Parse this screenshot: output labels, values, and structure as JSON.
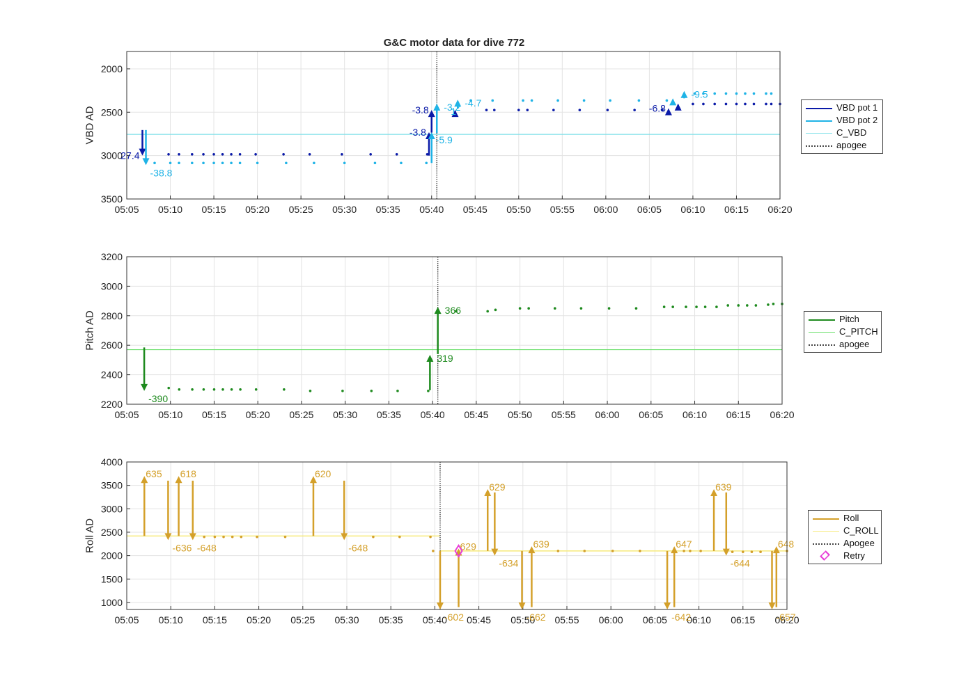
{
  "title": "G&C motor data for dive 772",
  "x_ticks": [
    "05:05",
    "05:10",
    "05:15",
    "05:20",
    "05:25",
    "05:30",
    "05:35",
    "05:40",
    "05:45",
    "05:50",
    "05:55",
    "06:00",
    "06:05",
    "06:10",
    "06:15",
    "06:20"
  ],
  "chart_data": [
    {
      "type": "line",
      "ylabel": "VBD AD",
      "xlim": [
        "05:05",
        "06:20"
      ],
      "ylim": [
        3500,
        1800
      ],
      "y_reversed": true,
      "yticks": [
        2000,
        2500,
        3000,
        3500
      ],
      "grid": true,
      "legend_position": "right",
      "legend": [
        "VBD pot 1",
        "VBD pot 2",
        "C_VBD",
        "apogee"
      ],
      "colors": {
        "pot1": "#0a1aa8",
        "pot2": "#1fb3e6",
        "c_line": "#7fe0e8",
        "apogee": "#444444"
      },
      "c_value": 2755,
      "apogee_time": "05:40.6",
      "series": [
        {
          "name": "VBD pot 1",
          "points": [
            [
              "05:09.8",
              2985
            ],
            [
              "05:11",
              2985
            ],
            [
              "05:12.5",
              2985
            ],
            [
              "05:13.8",
              2985
            ],
            [
              "05:15",
              2985
            ],
            [
              "05:16",
              2985
            ],
            [
              "05:17",
              2985
            ],
            [
              "05:18",
              2985
            ],
            [
              "05:19.8",
              2985
            ],
            [
              "05:23",
              2985
            ],
            [
              "05:26",
              2985
            ],
            [
              "05:29.7",
              2985
            ],
            [
              "05:33",
              2985
            ],
            [
              "05:36",
              2985
            ],
            [
              "05:39.5",
              2985
            ],
            [
              "05:46.3",
              2475
            ],
            [
              "05:47.2",
              2475
            ],
            [
              "05:50",
              2475
            ],
            [
              "05:51",
              2475
            ],
            [
              "05:54",
              2475
            ],
            [
              "05:57",
              2475
            ],
            [
              "06:00.2",
              2475
            ],
            [
              "06:03.3",
              2475
            ],
            [
              "06:06.5",
              2475
            ],
            [
              "06:10",
              2405
            ],
            [
              "06:11.2",
              2405
            ],
            [
              "06:12.5",
              2405
            ],
            [
              "06:13.8",
              2405
            ],
            [
              "06:15",
              2405
            ],
            [
              "06:16",
              2405
            ],
            [
              "06:17",
              2405
            ],
            [
              "06:18.4",
              2405
            ],
            [
              "06:19",
              2405
            ],
            [
              "06:20",
              2405
            ]
          ]
        },
        {
          "name": "VBD pot 2",
          "points": [
            [
              "05:08.2",
              3085
            ],
            [
              "05:10",
              3085
            ],
            [
              "05:11",
              3085
            ],
            [
              "05:12.5",
              3085
            ],
            [
              "05:13.8",
              3085
            ],
            [
              "05:15",
              3085
            ],
            [
              "05:16",
              3085
            ],
            [
              "05:17",
              3085
            ],
            [
              "05:18",
              3085
            ],
            [
              "05:20",
              3085
            ],
            [
              "05:23.3",
              3085
            ],
            [
              "05:26.5",
              3085
            ],
            [
              "05:30",
              3085
            ],
            [
              "05:33.5",
              3085
            ],
            [
              "05:36.5",
              3085
            ],
            [
              "05:39.4",
              3085
            ],
            [
              "05:44.5",
              2365
            ],
            [
              "05:47",
              2365
            ],
            [
              "05:50.5",
              2365
            ],
            [
              "05:51.5",
              2365
            ],
            [
              "05:54.5",
              2365
            ],
            [
              "05:57.5",
              2365
            ],
            [
              "06:00.5",
              2365
            ],
            [
              "06:03.8",
              2365
            ],
            [
              "06:07",
              2365
            ],
            [
              "06:10.2",
              2285
            ],
            [
              "06:11.2",
              2285
            ],
            [
              "06:12.5",
              2285
            ],
            [
              "06:13.8",
              2285
            ],
            [
              "06:15",
              2285
            ],
            [
              "06:16",
              2285
            ],
            [
              "06:17",
              2285
            ],
            [
              "06:18.4",
              2285
            ],
            [
              "06:19",
              2285
            ]
          ]
        }
      ],
      "moves": [
        {
          "series": "pot1",
          "t": "05:06.8",
          "y_from": 2705,
          "y_to": 3000,
          "label": "27.4",
          "label_side": "left"
        },
        {
          "series": "pot2",
          "t": "05:07.2",
          "y_from": 2705,
          "y_to": 3110,
          "label": "-38.8",
          "label_side": "below-right"
        },
        {
          "series": "pot1",
          "t": "05:39.7",
          "y_from": 3000,
          "y_to": 2730,
          "label": "-3.8",
          "label_side": "left"
        },
        {
          "series": "pot2",
          "t": "05:40",
          "y_from": 3085,
          "y_to": 2730,
          "label": "-5.9",
          "label_side": "below-right"
        },
        {
          "series": "pot1",
          "t": "05:40",
          "y_from": 2735,
          "y_to": 2475,
          "label": "-3.8",
          "label_side": "left"
        },
        {
          "series": "pot2",
          "t": "05:40.6",
          "y_from": 2740,
          "y_to": 2400,
          "label": "-3.2",
          "label_side": "right"
        },
        {
          "series": "pot1",
          "t": "05:42.7",
          "y_from": 2485,
          "y_to": 2475,
          "label": "",
          "label_side": "right"
        },
        {
          "series": "pot2",
          "t": "05:43",
          "y_from": 2460,
          "y_to": 2355,
          "label": "-4.7",
          "label_side": "right"
        },
        {
          "series": "pot1",
          "t": "06:07.2",
          "y_from": 2475,
          "y_to": 2455,
          "label": "-6.8",
          "label_side": "left"
        },
        {
          "series": "pot2",
          "t": "06:07.7",
          "y_from": 2405,
          "y_to": 2340,
          "label": "",
          "label_side": "right"
        },
        {
          "series": "pot1",
          "t": "06:08.3",
          "y_from": 2415,
          "y_to": 2400,
          "label": "",
          "label_side": "right"
        },
        {
          "series": "pot2",
          "t": "06:09",
          "y_from": 2340,
          "y_to": 2255,
          "label": "-9.5",
          "label_side": "right"
        }
      ],
      "extra_labels": [
        {
          "t": "05:42.2",
          "y": 2490,
          "text": "1",
          "series": "pot2"
        }
      ]
    },
    {
      "type": "line",
      "ylabel": "Pitch AD",
      "xlim": [
        "05:05",
        "06:20"
      ],
      "ylim": [
        2200,
        3200
      ],
      "yticks": [
        2200,
        2400,
        2600,
        2800,
        3000,
        3200
      ],
      "grid": true,
      "legend_position": "right",
      "legend": [
        "Pitch",
        "C_PITCH",
        "apogee"
      ],
      "colors": {
        "main": "#1e8a1e",
        "c_line": "#6ee06e",
        "apogee": "#444444"
      },
      "c_value": 2570,
      "apogee_time": "05:40.6",
      "series": [
        {
          "name": "Pitch",
          "points": [
            [
              "05:09.8",
              2310
            ],
            [
              "05:11",
              2300
            ],
            [
              "05:12.5",
              2300
            ],
            [
              "05:13.8",
              2300
            ],
            [
              "05:15",
              2300
            ],
            [
              "05:16",
              2300
            ],
            [
              "05:17",
              2300
            ],
            [
              "05:18",
              2300
            ],
            [
              "05:19.8",
              2300
            ],
            [
              "05:23",
              2300
            ],
            [
              "05:26",
              2290
            ],
            [
              "05:29.7",
              2290
            ],
            [
              "05:33",
              2290
            ],
            [
              "05:36",
              2290
            ],
            [
              "05:39.5",
              2290
            ],
            [
              "05:42.7",
              2830
            ],
            [
              "05:46.3",
              2830
            ],
            [
              "05:47.2",
              2840
            ],
            [
              "05:50",
              2850
            ],
            [
              "05:51",
              2850
            ],
            [
              "05:54",
              2850
            ],
            [
              "05:57",
              2850
            ],
            [
              "06:00.2",
              2850
            ],
            [
              "06:03.3",
              2850
            ],
            [
              "06:06.5",
              2860
            ],
            [
              "06:07.5",
              2860
            ],
            [
              "06:09",
              2860
            ],
            [
              "06:10.2",
              2860
            ],
            [
              "06:11.2",
              2860
            ],
            [
              "06:12.5",
              2860
            ],
            [
              "06:13.8",
              2870
            ],
            [
              "06:15",
              2870
            ],
            [
              "06:16",
              2870
            ],
            [
              "06:17",
              2870
            ],
            [
              "06:18.4",
              2875
            ],
            [
              "06:19",
              2880
            ],
            [
              "06:20",
              2880
            ]
          ]
        }
      ],
      "moves": [
        {
          "series": "main",
          "t": "05:07",
          "y_from": 2585,
          "y_to": 2290,
          "label": "-390",
          "label_side": "below-right"
        },
        {
          "series": "main",
          "t": "05:39.7",
          "y_from": 2295,
          "y_to": 2535,
          "label": "319",
          "label_side": "right"
        },
        {
          "series": "main",
          "t": "05:40.6",
          "y_from": 2540,
          "y_to": 2860,
          "label": "366",
          "label_side": "right"
        }
      ]
    },
    {
      "type": "line",
      "ylabel": "Roll AD",
      "xlim": [
        "05:05",
        "06:20"
      ],
      "ylim": [
        850,
        4000
      ],
      "yticks": [
        1000,
        1500,
        2000,
        2500,
        3000,
        3500,
        4000
      ],
      "grid": true,
      "legend_position": "right",
      "legend": [
        "Roll",
        "C_ROLL",
        "Apogee",
        "Retry"
      ],
      "colors": {
        "main": "#d4a02a",
        "c_line": "#f6ea7a",
        "apogee": "#444444",
        "retry": "#e83ed8"
      },
      "apogee_time": "05:40.6",
      "c_segments": [
        [
          "05:05",
          "05:40.6",
          2420
        ],
        [
          "05:40.6",
          "06:20",
          2100
        ]
      ],
      "retry": {
        "t": "05:42.7",
        "y": 2100
      },
      "series": [
        {
          "name": "Roll",
          "points": [
            [
              "05:13.8",
              2400
            ],
            [
              "05:15",
              2400
            ],
            [
              "05:16",
              2400
            ],
            [
              "05:17",
              2400
            ],
            [
              "05:18",
              2400
            ],
            [
              "05:19.8",
              2400
            ],
            [
              "05:23",
              2400
            ],
            [
              "05:33",
              2400
            ],
            [
              "05:36",
              2400
            ],
            [
              "05:39.5",
              2400
            ],
            [
              "05:39.8",
              2100
            ],
            [
              "05:54",
              2100
            ],
            [
              "05:57",
              2100
            ],
            [
              "06:00.2",
              2100
            ],
            [
              "06:03.3",
              2100
            ],
            [
              "06:08.3",
              2100
            ],
            [
              "06:09",
              2100
            ],
            [
              "06:10.2",
              2100
            ],
            [
              "06:13.8",
              2080
            ],
            [
              "06:15",
              2080
            ],
            [
              "06:16",
              2080
            ],
            [
              "06:17",
              2080
            ],
            [
              "06:20",
              2100
            ]
          ]
        }
      ],
      "moves": [
        {
          "series": "main",
          "t": "05:07",
          "y_from": 2420,
          "y_to": 3700,
          "label": "635",
          "label_side": "top-right"
        },
        {
          "series": "main",
          "t": "05:09.7",
          "y_from": 3600,
          "y_to": 2330,
          "label": "-636",
          "label_side": "below-right"
        },
        {
          "series": "main",
          "t": "05:10.9",
          "y_from": 2420,
          "y_to": 3700,
          "label": "618",
          "label_side": "top-right"
        },
        {
          "series": "main",
          "t": "05:12.5",
          "y_from": 3600,
          "y_to": 2330,
          "label": "-648",
          "label_side": "below-right"
        },
        {
          "series": "main",
          "t": "05:26.2",
          "y_from": 2420,
          "y_to": 3700,
          "label": "620",
          "label_side": "top-right"
        },
        {
          "series": "main",
          "t": "05:29.7",
          "y_from": 3600,
          "y_to": 2330,
          "label": "-648",
          "label_side": "below-right"
        },
        {
          "series": "main",
          "t": "05:40.6",
          "y_from": 2100,
          "y_to": 850,
          "label": "-602",
          "label_side": "below-right"
        },
        {
          "series": "main",
          "t": "05:42.7",
          "y_from": 900,
          "y_to": 2150,
          "label": "629",
          "label_side": "top-right"
        },
        {
          "series": "main",
          "t": "05:46",
          "y_from": 2100,
          "y_to": 3420,
          "label": "629",
          "label_side": "top-right"
        },
        {
          "series": "main",
          "t": "05:46.8",
          "y_from": 3350,
          "y_to": 2000,
          "label": "-634",
          "label_side": "below-right"
        },
        {
          "series": "main",
          "t": "05:49.9",
          "y_from": 2100,
          "y_to": 850,
          "label": "-662",
          "label_side": "below-right"
        },
        {
          "series": "main",
          "t": "05:51",
          "y_from": 900,
          "y_to": 2200,
          "label": "639",
          "label_side": "top-right"
        },
        {
          "series": "main",
          "t": "06:06.4",
          "y_from": 2100,
          "y_to": 850,
          "label": "-642",
          "label_side": "below-right"
        },
        {
          "series": "main",
          "t": "06:07.2",
          "y_from": 900,
          "y_to": 2200,
          "label": "647",
          "label_side": "top-right"
        },
        {
          "series": "main",
          "t": "06:11.7",
          "y_from": 2100,
          "y_to": 3420,
          "label": "639",
          "label_side": "top-right"
        },
        {
          "series": "main",
          "t": "06:13.1",
          "y_from": 3350,
          "y_to": 2000,
          "label": "-644",
          "label_side": "below-right"
        },
        {
          "series": "main",
          "t": "06:18.3",
          "y_from": 2100,
          "y_to": 850,
          "label": "-657",
          "label_side": "below-right"
        },
        {
          "series": "main",
          "t": "06:18.8",
          "y_from": 900,
          "y_to": 2200,
          "label": "648",
          "label_side": "top-right"
        }
      ]
    }
  ]
}
